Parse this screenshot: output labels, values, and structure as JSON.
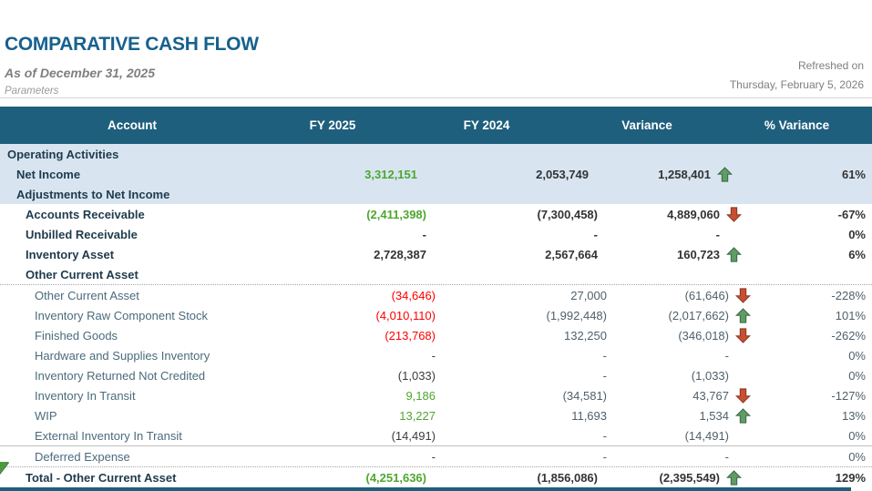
{
  "report": {
    "title": "COMPARATIVE CASH FLOW",
    "subtitle": "As of December 31, 2025",
    "parameters_label": "Parameters",
    "refreshed_label": "Refreshed on",
    "refreshed_date": "Thursday, February 5, 2026"
  },
  "colors": {
    "header_bg": "#1E5F7D",
    "header_text": "#FFFFFF",
    "band_bg": "#D8E5F1",
    "title_blue": "#17618D",
    "positive_green": "#4EA72E",
    "negative_red": "#FF0000",
    "arrow_up_fill": "#5F9C68",
    "arrow_up_stroke": "#3E6B45",
    "arrow_down_fill": "#C84F32",
    "arrow_down_stroke": "#8F3620",
    "accent_bar": "#1E5F7D"
  },
  "table": {
    "columns": [
      "Account",
      "FY 2025",
      "FY 2024",
      "Variance",
      "% Variance"
    ],
    "rows": [
      {
        "label": "Operating Activities",
        "indent": 0,
        "bold": true,
        "band": true,
        "fy2025": "",
        "c25": "dark",
        "fy2024": "",
        "variance": "",
        "arrow": "",
        "pct": ""
      },
      {
        "label": "Net Income",
        "indent": 1,
        "bold": true,
        "band": true,
        "fy2025": "3,312,151",
        "c25": "green",
        "fy2024": "2,053,749",
        "variance": "1,258,401",
        "arrow": "up",
        "pct": "61%"
      },
      {
        "label": "Adjustments to Net Income",
        "indent": 1,
        "bold": true,
        "band": true,
        "fy2025": "",
        "c25": "dark",
        "fy2024": "",
        "variance": "",
        "arrow": "",
        "pct": ""
      },
      {
        "label": "Accounts Receivable",
        "indent": 2,
        "bold": true,
        "band": false,
        "fy2025": "(2,411,398)",
        "c25": "green",
        "fy2024": "(7,300,458)",
        "variance": "4,889,060",
        "arrow": "down",
        "pct": "-67%"
      },
      {
        "label": "Unbilled Receivable",
        "indent": 2,
        "bold": true,
        "band": false,
        "fy2025": "-",
        "c25": "dark",
        "fy2024": "-",
        "variance": "-",
        "arrow": "",
        "pct": "0%"
      },
      {
        "label": "Inventory Asset",
        "indent": 2,
        "bold": true,
        "band": false,
        "fy2025": "2,728,387",
        "c25": "dark",
        "fy2024": "2,567,664",
        "variance": "160,723",
        "arrow": "up",
        "pct": "6%"
      },
      {
        "label": "Other Current Asset",
        "indent": 2,
        "bold": true,
        "band": false,
        "fy2025": "",
        "c25": "dark",
        "fy2024": "",
        "variance": "",
        "arrow": "",
        "pct": ""
      },
      {
        "label": "Other Current Asset",
        "indent": 3,
        "bold": false,
        "band": false,
        "border_top": "dotted",
        "fy2025": "(34,646)",
        "c25": "red",
        "fy2024": "27,000",
        "variance": "(61,646)",
        "arrow": "down",
        "pct": "-228%"
      },
      {
        "label": "Inventory Raw Component Stock",
        "indent": 3,
        "bold": false,
        "band": false,
        "fy2025": "(4,010,110)",
        "c25": "red",
        "fy2024": "(1,992,448)",
        "variance": "(2,017,662)",
        "arrow": "up",
        "pct": "101%"
      },
      {
        "label": "Finished Goods",
        "indent": 3,
        "bold": false,
        "band": false,
        "fy2025": "(213,768)",
        "c25": "red",
        "fy2024": "132,250",
        "variance": "(346,018)",
        "arrow": "down",
        "pct": "-262%"
      },
      {
        "label": "Hardware and Supplies Inventory",
        "indent": 3,
        "bold": false,
        "band": false,
        "fy2025": "-",
        "c25": "dark",
        "fy2024": "-",
        "variance": "-",
        "arrow": "",
        "pct": "0%"
      },
      {
        "label": "Inventory Returned Not Credited",
        "indent": 3,
        "bold": false,
        "band": false,
        "fy2025": "(1,033)",
        "c25": "dark",
        "fy2024": "-",
        "variance": "(1,033)",
        "arrow": "",
        "pct": "0%"
      },
      {
        "label": "Inventory In Transit",
        "indent": 3,
        "bold": false,
        "band": false,
        "fy2025": "9,186",
        "c25": "green",
        "fy2024": "(34,581)",
        "variance": "43,767",
        "arrow": "down",
        "pct": "-127%"
      },
      {
        "label": "WIP",
        "indent": 3,
        "bold": false,
        "band": false,
        "fy2025": "13,227",
        "c25": "green",
        "fy2024": "11,693",
        "variance": "1,534",
        "arrow": "up",
        "pct": "13%"
      },
      {
        "label": "External Inventory In Transit",
        "indent": 3,
        "bold": false,
        "band": false,
        "fy2025": "(14,491)",
        "c25": "dark",
        "fy2024": "-",
        "variance": "(14,491)",
        "arrow": "",
        "pct": "0%"
      },
      {
        "label": "Deferred Expense",
        "indent": 3,
        "bold": false,
        "band": false,
        "border_top": "solid",
        "fy2025": "-",
        "c25": "dark",
        "fy2024": "-",
        "variance": "-",
        "arrow": "",
        "pct": "0%"
      },
      {
        "label": "Total - Other Current Asset",
        "indent": 2,
        "bold": true,
        "band": false,
        "border_top": "dotted",
        "marker": true,
        "fy2025": "(4,251,636)",
        "c25": "green",
        "fy2024": "(1,856,086)",
        "variance": "(2,395,549)",
        "arrow": "up",
        "pct": "129%"
      }
    ]
  }
}
